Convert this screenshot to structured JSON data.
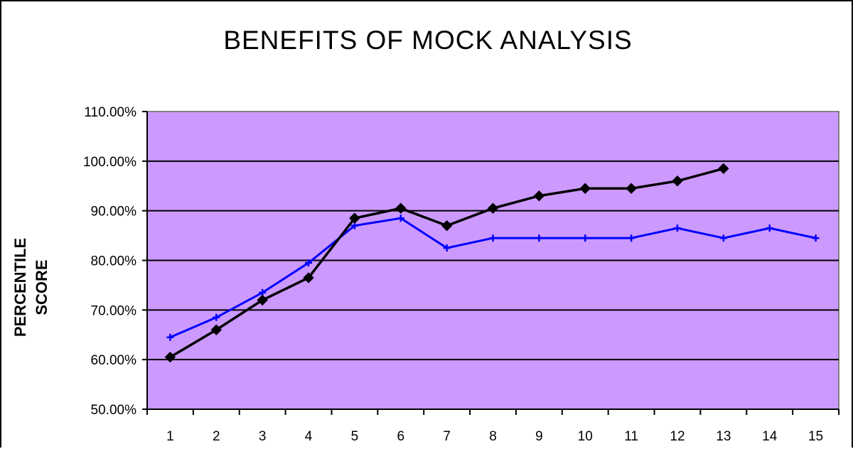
{
  "chart_data": {
    "type": "line",
    "title": "BENEFITS OF MOCK ANALYSIS",
    "ylabel": [
      "PERCENTILE",
      "SCORE"
    ],
    "xlabel": "",
    "x": [
      1,
      2,
      3,
      4,
      5,
      6,
      7,
      8,
      9,
      10,
      11,
      12,
      13,
      14,
      15
    ],
    "ylim": [
      50,
      110
    ],
    "yticks": [
      50,
      60,
      70,
      80,
      90,
      100,
      110
    ],
    "ytick_labels": [
      "50.00%",
      "60.00%",
      "70.00%",
      "80.00%",
      "90.00%",
      "100.00%",
      "110.00%"
    ],
    "grid": true,
    "legend": "none",
    "plot_background": "#cc99ff",
    "series": [
      {
        "color": "#0000ff",
        "marker": "plus",
        "values": [
          64.5,
          68.5,
          73.5,
          79.5,
          87,
          88.5,
          82.5,
          84.5,
          84.5,
          84.5,
          84.5,
          86.5,
          84.5,
          86.5,
          84.5
        ]
      },
      {
        "color": "#000000",
        "marker": "diamond",
        "values": [
          60.5,
          66,
          72,
          76.5,
          88.5,
          90.5,
          87,
          90.5,
          93,
          94.5,
          94.5,
          96,
          98.5,
          null,
          null
        ]
      }
    ]
  }
}
